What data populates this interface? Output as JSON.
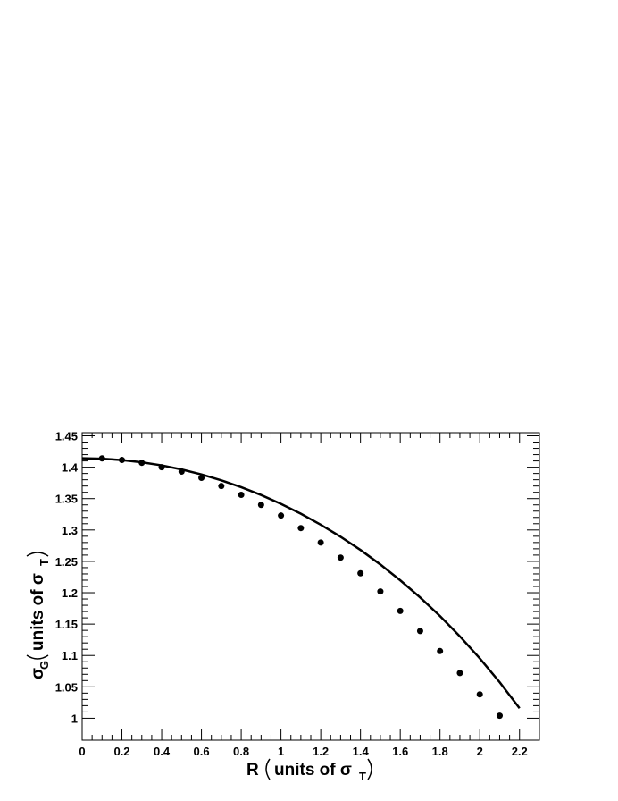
{
  "chart_data": {
    "type": "scatter",
    "x_label": "R",
    "x_label_unit": "units of σ",
    "x_label_unit_sub": "T",
    "y_label": "σ",
    "y_label_sub": "G",
    "y_label_unit": "units of σ",
    "y_label_unit_sub": "T",
    "xlim": [
      0,
      2.3
    ],
    "ylim": [
      0.965,
      1.455
    ],
    "xticks": [
      0,
      0.2,
      0.4,
      0.6,
      0.8,
      1,
      1.2,
      1.4,
      1.6,
      1.8,
      2,
      2.2
    ],
    "yticks": [
      1,
      1.05,
      1.1,
      1.15,
      1.2,
      1.25,
      1.3,
      1.35,
      1.4,
      1.45
    ],
    "series": [
      {
        "style": "markers",
        "color": "#000000",
        "x": [
          0.1,
          0.2,
          0.3,
          0.4,
          0.5,
          0.6,
          0.7,
          0.8,
          0.9,
          1.0,
          1.1,
          1.2,
          1.3,
          1.4,
          1.5,
          1.6,
          1.7,
          1.8,
          1.9,
          2.0,
          2.1
        ],
        "values": [
          1.414,
          1.4115,
          1.407,
          1.4,
          1.393,
          1.383,
          1.37,
          1.356,
          1.34,
          1.323,
          1.303,
          1.28,
          1.256,
          1.231,
          1.202,
          1.171,
          1.139,
          1.107,
          1.072,
          1.038,
          1.004
        ]
      },
      {
        "style": "line",
        "color": "#000000",
        "x": [
          0,
          0.1,
          0.2,
          0.3,
          0.4,
          0.5,
          0.6,
          0.7,
          0.8,
          0.9,
          1.0,
          1.1,
          1.2,
          1.3,
          1.4,
          1.5,
          1.6,
          1.7,
          1.8,
          1.9,
          2.0,
          2.1,
          2.2
        ],
        "values": [
          1.4142,
          1.4135,
          1.4114,
          1.4078,
          1.4029,
          1.3964,
          1.3885,
          1.3791,
          1.3682,
          1.3557,
          1.3416,
          1.3259,
          1.3084,
          1.2892,
          1.2681,
          1.245,
          1.2198,
          1.1925,
          1.1628,
          1.1305,
          1.0954,
          1.0574,
          1.0159
        ]
      }
    ]
  }
}
